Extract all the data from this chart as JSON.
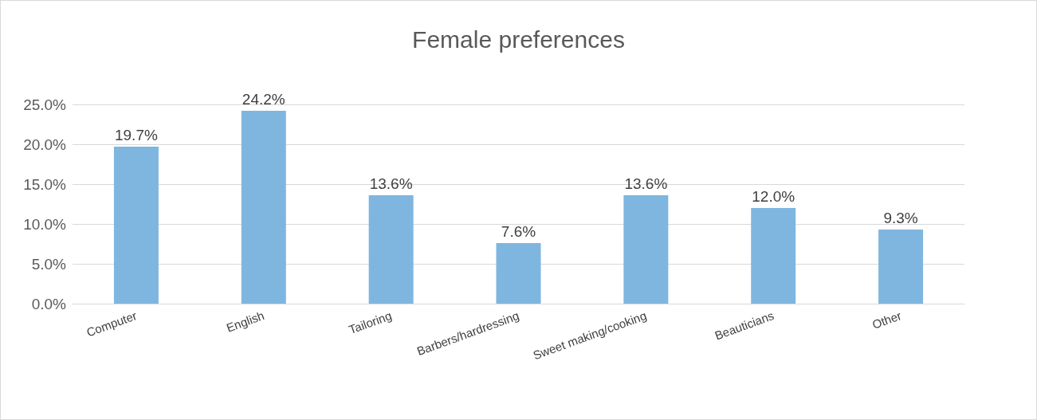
{
  "chart_data": {
    "type": "bar",
    "title": "Female preferences",
    "categories": [
      "Computer",
      "English",
      "Tailoring",
      "Barbers/hardressing",
      "Sweet making/cooking",
      "Beauticians",
      "Other"
    ],
    "values": [
      19.7,
      24.2,
      13.6,
      7.6,
      13.6,
      12.0,
      9.3
    ],
    "value_labels": [
      "19.7%",
      "24.2%",
      "13.6%",
      "7.6%",
      "13.6%",
      "12.0%",
      "9.3%"
    ],
    "color": "#7fb6df",
    "ylim": [
      0,
      25
    ],
    "yticks": [
      {
        "value": 0,
        "label": "0.0%"
      },
      {
        "value": 5,
        "label": "5.0%"
      },
      {
        "value": 10,
        "label": "10.0%"
      },
      {
        "value": 15,
        "label": "15.0%"
      },
      {
        "value": 20,
        "label": "20.0%"
      },
      {
        "value": 25,
        "label": "25.0%"
      }
    ],
    "grid": "y"
  }
}
